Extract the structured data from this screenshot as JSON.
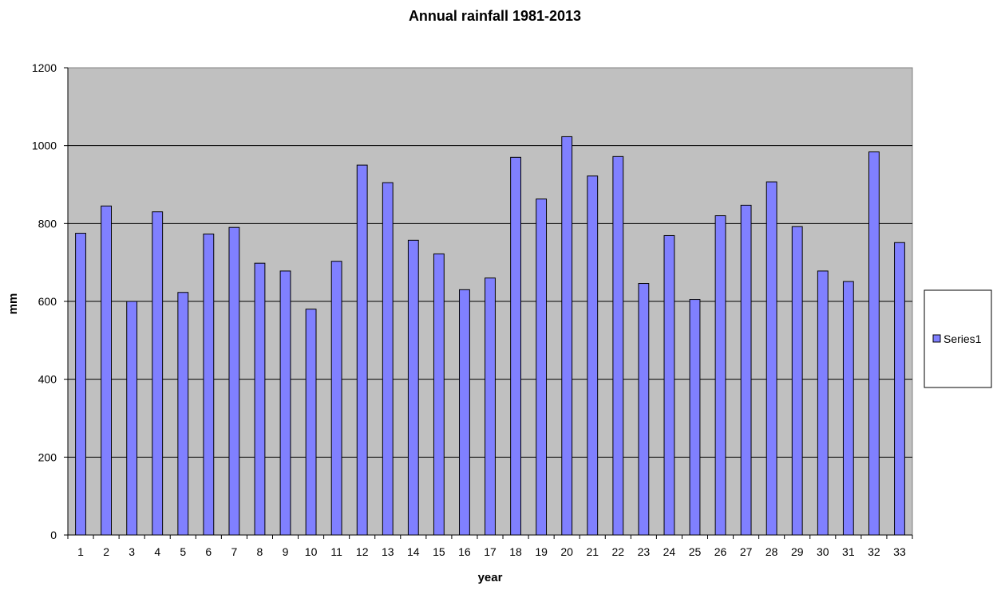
{
  "chart_data": {
    "type": "bar",
    "title": "Annual rainfall 1981-2013",
    "xlabel": "year",
    "ylabel": "mm",
    "ylim": [
      0,
      1200
    ],
    "yticks": [
      "0",
      "200",
      "400",
      "600",
      "800",
      "1000",
      "1200"
    ],
    "grid": "horizontal",
    "legend_position": "right",
    "categories": [
      "1",
      "2",
      "3",
      "4",
      "5",
      "6",
      "7",
      "8",
      "9",
      "10",
      "11",
      "12",
      "13",
      "14",
      "15",
      "16",
      "17",
      "18",
      "19",
      "20",
      "21",
      "22",
      "23",
      "24",
      "25",
      "26",
      "27",
      "28",
      "29",
      "30",
      "31",
      "32",
      "33"
    ],
    "series": [
      {
        "name": "Series1",
        "color": "#8080ff",
        "values": [
          775,
          845,
          600,
          830,
          623,
          773,
          790,
          698,
          678,
          580,
          703,
          950,
          905,
          757,
          722,
          630,
          660,
          970,
          863,
          1023,
          922,
          972,
          646,
          769,
          605,
          820,
          847,
          907,
          792,
          678,
          651,
          984,
          751
        ]
      }
    ],
    "plot_background": "#c0c0c0"
  }
}
